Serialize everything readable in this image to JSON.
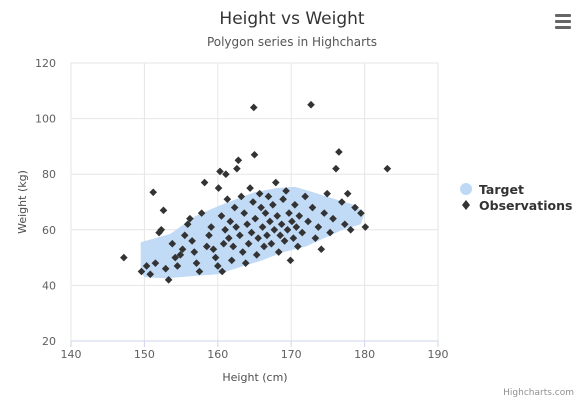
{
  "chart_data": {
    "type": "scatter",
    "title": "Height vs Weight",
    "subtitle": "Polygon series in Highcharts",
    "xlabel": "Height (cm)",
    "ylabel": "Weight (kg)",
    "xlim": [
      140,
      190
    ],
    "ylim": [
      20,
      120
    ],
    "xticks": [
      "140",
      "150",
      "160",
      "170",
      "180",
      "190"
    ],
    "yticks": [
      "20",
      "40",
      "60",
      "80",
      "100",
      "120"
    ],
    "grid": true,
    "legend_position": "right",
    "credits": "Highcharts.com",
    "series": [
      {
        "name": "Target",
        "type": "polygon",
        "color": "#bed8f5",
        "points": [
          [
            149.5,
            55.5
          ],
          [
            153.5,
            58.5
          ],
          [
            157,
            65
          ],
          [
            160,
            68.5
          ],
          [
            163,
            71.5
          ],
          [
            165,
            73.5
          ],
          [
            168,
            75
          ],
          [
            170.5,
            75.5
          ],
          [
            173,
            73.5
          ],
          [
            176,
            71
          ],
          [
            178.5,
            69
          ],
          [
            180,
            66
          ],
          [
            179.5,
            62
          ],
          [
            177,
            60
          ],
          [
            174.5,
            57
          ],
          [
            172,
            54
          ],
          [
            169,
            52
          ],
          [
            166,
            49
          ],
          [
            163,
            46.5
          ],
          [
            160,
            44
          ],
          [
            157,
            43.5
          ],
          [
            153,
            42.5
          ],
          [
            150,
            43
          ],
          [
            149.5,
            45
          ]
        ]
      },
      {
        "name": "Observations",
        "type": "scatter",
        "color": "#333333",
        "points": [
          [
            147.2,
            50
          ],
          [
            149.6,
            45
          ],
          [
            150.3,
            47
          ],
          [
            150.8,
            44
          ],
          [
            151.2,
            73.5
          ],
          [
            151.5,
            48
          ],
          [
            152.0,
            59
          ],
          [
            152.3,
            60
          ],
          [
            152.6,
            67
          ],
          [
            152.9,
            46
          ],
          [
            153.3,
            42
          ],
          [
            153.8,
            55
          ],
          [
            154.2,
            50
          ],
          [
            154.5,
            47
          ],
          [
            154.9,
            51
          ],
          [
            155.2,
            53
          ],
          [
            155.5,
            58
          ],
          [
            155.9,
            62
          ],
          [
            156.2,
            64
          ],
          [
            156.5,
            56
          ],
          [
            156.8,
            52
          ],
          [
            157.1,
            48
          ],
          [
            157.5,
            45
          ],
          [
            157.8,
            66
          ],
          [
            158.2,
            77
          ],
          [
            158.5,
            54
          ],
          [
            158.8,
            58
          ],
          [
            159.1,
            61
          ],
          [
            159.4,
            53
          ],
          [
            159.7,
            50
          ],
          [
            160.0,
            47
          ],
          [
            160.1,
            75
          ],
          [
            160.3,
            81
          ],
          [
            160.5,
            65
          ],
          [
            160.6,
            45
          ],
          [
            160.8,
            55
          ],
          [
            161.0,
            60
          ],
          [
            161.1,
            80
          ],
          [
            161.3,
            71
          ],
          [
            161.5,
            57
          ],
          [
            161.7,
            63
          ],
          [
            161.9,
            49
          ],
          [
            162.1,
            54
          ],
          [
            162.3,
            68
          ],
          [
            162.5,
            61
          ],
          [
            162.6,
            82
          ],
          [
            162.8,
            85
          ],
          [
            163.0,
            58
          ],
          [
            163.2,
            72
          ],
          [
            163.4,
            52
          ],
          [
            163.6,
            66
          ],
          [
            163.8,
            48
          ],
          [
            164.0,
            62
          ],
          [
            164.2,
            55
          ],
          [
            164.4,
            75
          ],
          [
            164.6,
            59
          ],
          [
            164.8,
            70
          ],
          [
            164.9,
            104
          ],
          [
            165.0,
            87
          ],
          [
            165.1,
            64
          ],
          [
            165.3,
            51
          ],
          [
            165.5,
            57
          ],
          [
            165.7,
            73
          ],
          [
            165.9,
            68
          ],
          [
            166.1,
            61
          ],
          [
            166.3,
            54
          ],
          [
            166.5,
            66
          ],
          [
            166.7,
            58
          ],
          [
            166.9,
            72
          ],
          [
            167.1,
            63
          ],
          [
            167.3,
            55
          ],
          [
            167.5,
            69
          ],
          [
            167.7,
            60
          ],
          [
            167.9,
            77
          ],
          [
            168.1,
            65
          ],
          [
            168.3,
            52
          ],
          [
            168.5,
            58
          ],
          [
            168.7,
            62
          ],
          [
            168.9,
            71
          ],
          [
            169.1,
            56
          ],
          [
            169.3,
            74
          ],
          [
            169.5,
            60
          ],
          [
            169.7,
            66
          ],
          [
            169.9,
            49
          ],
          [
            170.1,
            63
          ],
          [
            170.3,
            57
          ],
          [
            170.5,
            69
          ],
          [
            170.7,
            61
          ],
          [
            170.9,
            54
          ],
          [
            171.1,
            65
          ],
          [
            171.5,
            59
          ],
          [
            171.9,
            72
          ],
          [
            172.3,
            63
          ],
          [
            172.7,
            105
          ],
          [
            172.9,
            68
          ],
          [
            173.3,
            57
          ],
          [
            173.7,
            61
          ],
          [
            174.1,
            53
          ],
          [
            174.5,
            66
          ],
          [
            174.9,
            73
          ],
          [
            175.3,
            59
          ],
          [
            175.7,
            64
          ],
          [
            176.1,
            82
          ],
          [
            176.5,
            88
          ],
          [
            176.9,
            70
          ],
          [
            177.3,
            62
          ],
          [
            177.7,
            73
          ],
          [
            178.1,
            60
          ],
          [
            178.7,
            68
          ],
          [
            179.5,
            66
          ],
          [
            180.1,
            61
          ],
          [
            183.1,
            82
          ]
        ]
      }
    ]
  }
}
